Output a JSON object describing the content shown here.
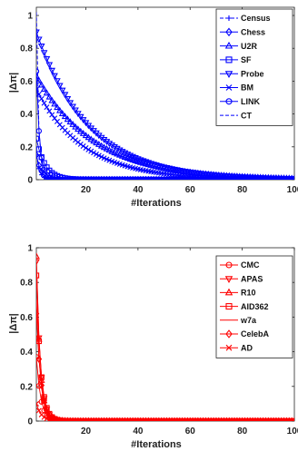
{
  "chart_data": [
    {
      "type": "line",
      "color": "#0000ff",
      "xlabel": "#Iterations",
      "ylabel": "|Δ_π|",
      "xlim": [
        1,
        100
      ],
      "ylim": [
        0,
        1.05
      ],
      "xticks": [
        20,
        40,
        60,
        80,
        100
      ],
      "yticks": [
        0,
        0.2,
        0.4,
        0.6,
        0.8,
        1
      ],
      "legend_position": "top-right",
      "series": [
        {
          "name": "Census",
          "marker": "plus",
          "dash": "dashed",
          "y0": 0.15,
          "rate": 0.8
        },
        {
          "name": "Chess",
          "marker": "diamond",
          "dash": "solid",
          "y0": 0.15,
          "rate": 0.55
        },
        {
          "name": "U2R",
          "marker": "triangle-up",
          "dash": "solid",
          "y0": 0.63,
          "rate": 0.045
        },
        {
          "name": "SF",
          "marker": "square",
          "dash": "solid",
          "y0": 0.25,
          "rate": 0.3
        },
        {
          "name": "Probe",
          "marker": "triangle-down",
          "dash": "solid",
          "y0": 0.9,
          "rate": 0.05
        },
        {
          "name": "BM",
          "marker": "x",
          "dash": "solid",
          "y0": 0.55,
          "rate": 0.055
        },
        {
          "name": "LINK",
          "marker": "circle",
          "dash": "solid",
          "y0": 0.66,
          "rate": 0.8
        },
        {
          "name": "CT",
          "marker": "none",
          "dash": "dashed",
          "y0": 1.02,
          "rate": 1.2
        }
      ]
    },
    {
      "type": "line",
      "color": "#ff0000",
      "xlabel": "#Iterations",
      "ylabel": "|Δ_π|",
      "xlim": [
        1,
        100
      ],
      "ylim": [
        0,
        1
      ],
      "xticks": [
        20,
        40,
        60,
        80,
        100
      ],
      "yticks": [
        0,
        0.2,
        0.4,
        0.6,
        0.8,
        1
      ],
      "legend_position": "top-right",
      "series": [
        {
          "name": "CMC",
          "marker": "circle",
          "dash": "solid",
          "y0": 0.37,
          "rate": 0.6
        },
        {
          "name": "APAS",
          "marker": "triangle-down",
          "dash": "solid",
          "y0": 0.92,
          "rate": 0.65
        },
        {
          "name": "R10",
          "marker": "triangle-up",
          "dash": "solid",
          "y0": 0.95,
          "rate": 0.7
        },
        {
          "name": "AID362",
          "marker": "square",
          "dash": "solid",
          "y0": 0.84,
          "rate": 0.6
        },
        {
          "name": "w7a",
          "marker": "none",
          "dash": "solid",
          "y0": 0.7,
          "rate": 0.65
        },
        {
          "name": "CelebA",
          "marker": "diamond",
          "dash": "solid",
          "y0": 0.62,
          "rate": 0.55
        },
        {
          "name": "AD",
          "marker": "x",
          "dash": "solid",
          "y0": 0.1,
          "rate": 0.5
        }
      ]
    }
  ]
}
